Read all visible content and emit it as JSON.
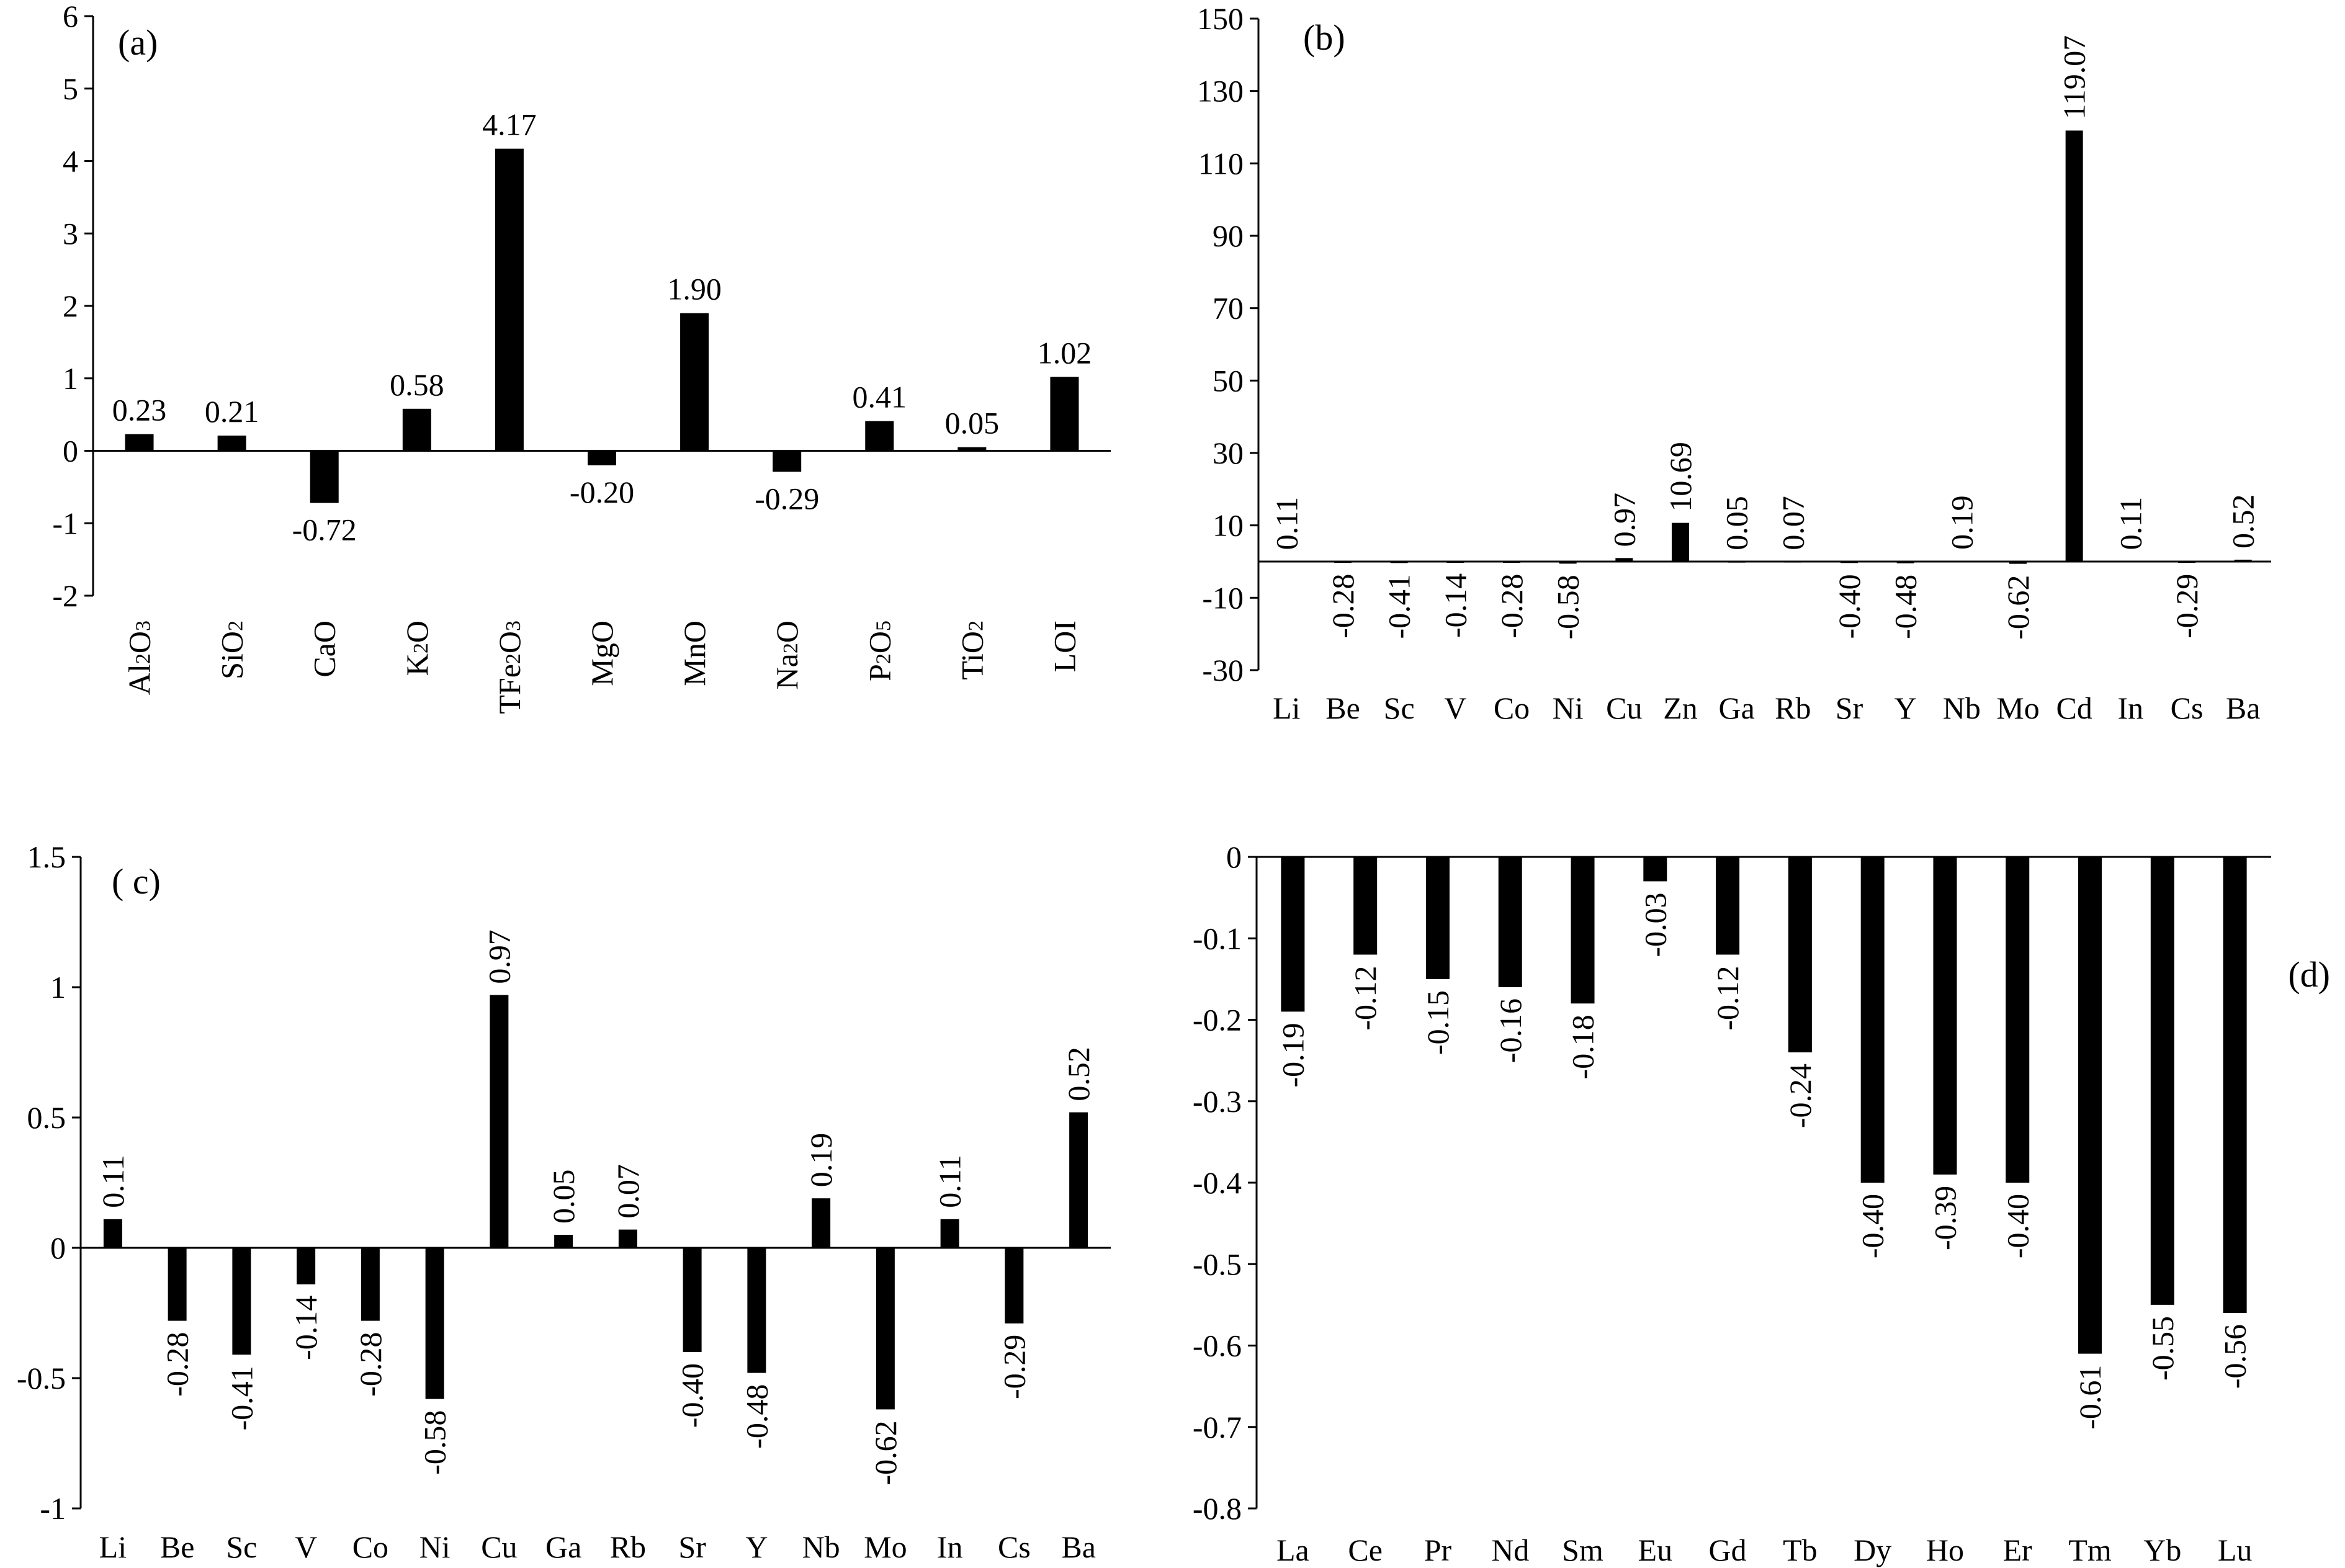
{
  "chart_data": [
    {
      "type": "bar",
      "panel_label": "(a)",
      "categories": [
        "Al2O3",
        "SiO2",
        "CaO",
        "K2O",
        "TFe2O3",
        "MgO",
        "MnO",
        "Na2O",
        "P2O5",
        "TiO2",
        "LOI"
      ],
      "category_labels": [
        {
          "base": "Al",
          "sub": "2",
          "rest": "O",
          "sub2": "3"
        },
        {
          "base": "SiO",
          "sub": "2",
          "rest": "",
          "sub2": ""
        },
        {
          "base": "CaO",
          "sub": "",
          "rest": "",
          "sub2": ""
        },
        {
          "base": "K",
          "sub": "2",
          "rest": "O",
          "sub2": ""
        },
        {
          "base": "TFe",
          "sub": "2",
          "rest": "O",
          "sub2": "3"
        },
        {
          "base": "MgO",
          "sub": "",
          "rest": "",
          "sub2": ""
        },
        {
          "base": "MnO",
          "sub": "",
          "rest": "",
          "sub2": ""
        },
        {
          "base": "Na",
          "sub": "2",
          "rest": "O",
          "sub2": ""
        },
        {
          "base": "P",
          "sub": "2",
          "rest": "O",
          "sub2": "5"
        },
        {
          "base": "TiO",
          "sub": "2",
          "rest": "",
          "sub2": ""
        },
        {
          "base": "LOI",
          "sub": "",
          "rest": "",
          "sub2": ""
        }
      ],
      "values": [
        0.23,
        0.21,
        -0.72,
        0.58,
        4.17,
        -0.2,
        1.9,
        -0.29,
        0.41,
        0.05,
        1.02
      ],
      "value_labels": [
        "0.23",
        "0.21",
        "-0.72",
        "0.58",
        "4.17",
        "-0.20",
        "1.90",
        "-0.29",
        "0.41",
        "0.05",
        "1.02"
      ],
      "ylim": [
        -2,
        6
      ],
      "yticks": [
        "6",
        "5",
        "4",
        "3",
        "2",
        "1",
        "0",
        "-1",
        "-2"
      ],
      "label_orientation": "horizontal",
      "category_orientation": "vertical",
      "grid": false,
      "bar_color": "#000000"
    },
    {
      "type": "bar",
      "panel_label": "(b)",
      "categories": [
        "Li",
        "Be",
        "Sc",
        "V",
        "Co",
        "Ni",
        "Cu",
        "Zn",
        "Ga",
        "Rb",
        "Sr",
        "Y",
        "Nb",
        "Mo",
        "Cd",
        "In",
        "Cs",
        "Ba"
      ],
      "values": [
        0.11,
        -0.28,
        -0.41,
        -0.14,
        -0.28,
        -0.58,
        0.97,
        10.69,
        0.05,
        0.07,
        -0.4,
        -0.48,
        0.19,
        -0.62,
        119.07,
        0.11,
        -0.29,
        0.52
      ],
      "value_labels": [
        "0.11",
        "-0.28",
        "-0.41",
        "-0.14",
        "-0.28",
        "-0.58",
        "0.97",
        "10.69",
        "0.05",
        "0.07",
        "-0.40",
        "-0.48",
        "0.19",
        "-0.62",
        "119.07",
        "0.11",
        "-0.29",
        "0.52"
      ],
      "ylim": [
        -30,
        150
      ],
      "yticks": [
        "150",
        "130",
        "110",
        "90",
        "70",
        "50",
        "30",
        "10",
        "-10",
        "-30"
      ],
      "label_orientation": "vertical",
      "category_orientation": "horizontal",
      "grid": false,
      "bar_color": "#000000"
    },
    {
      "type": "bar",
      "panel_label": "( c)",
      "categories": [
        "Li",
        "Be",
        "Sc",
        "V",
        "Co",
        "Ni",
        "Cu",
        "Ga",
        "Rb",
        "Sr",
        "Y",
        "Nb",
        "Mo",
        "In",
        "Cs",
        "Ba"
      ],
      "values": [
        0.11,
        -0.28,
        -0.41,
        -0.14,
        -0.28,
        -0.58,
        0.97,
        0.05,
        0.07,
        -0.4,
        -0.48,
        0.19,
        -0.62,
        0.11,
        -0.29,
        0.52
      ],
      "value_labels": [
        "0.11",
        "-0.28",
        "-0.41",
        "-0.14",
        "-0.28",
        "-0.58",
        "0.97",
        "0.05",
        "0.07",
        "-0.40",
        "-0.48",
        "0.19",
        "-0.62",
        "0.11",
        "-0.29",
        "0.52"
      ],
      "ylim": [
        -1,
        1.5
      ],
      "yticks": [
        "1.5",
        "1",
        "0.5",
        "0",
        "-0.5",
        "-1"
      ],
      "label_orientation": "vertical",
      "category_orientation": "horizontal",
      "grid": false,
      "bar_color": "#000000"
    },
    {
      "type": "bar",
      "panel_label": "(d)",
      "categories": [
        "La",
        "Ce",
        "Pr",
        "Nd",
        "Sm",
        "Eu",
        "Gd",
        "Tb",
        "Dy",
        "Ho",
        "Er",
        "Tm",
        "Yb",
        "Lu"
      ],
      "values": [
        -0.19,
        -0.12,
        -0.15,
        -0.16,
        -0.18,
        -0.03,
        -0.12,
        -0.24,
        -0.4,
        -0.39,
        -0.4,
        -0.61,
        -0.55,
        -0.56
      ],
      "value_labels": [
        "-0.19",
        "-0.12",
        "-0.15",
        "-0.16",
        "-0.18",
        "-0.03",
        "-0.12",
        "-0.24",
        "-0.40",
        "-0.39",
        "-0.40",
        "-0.61",
        "-0.55",
        "-0.56"
      ],
      "ylim": [
        -0.8,
        0
      ],
      "yticks": [
        "0",
        "-0.1",
        "-0.2",
        "-0.3",
        "-0.4",
        "-0.5",
        "-0.6",
        "-0.7",
        "-0.8"
      ],
      "label_orientation": "vertical",
      "category_orientation": "horizontal",
      "grid": false,
      "bar_color": "#000000"
    }
  ]
}
